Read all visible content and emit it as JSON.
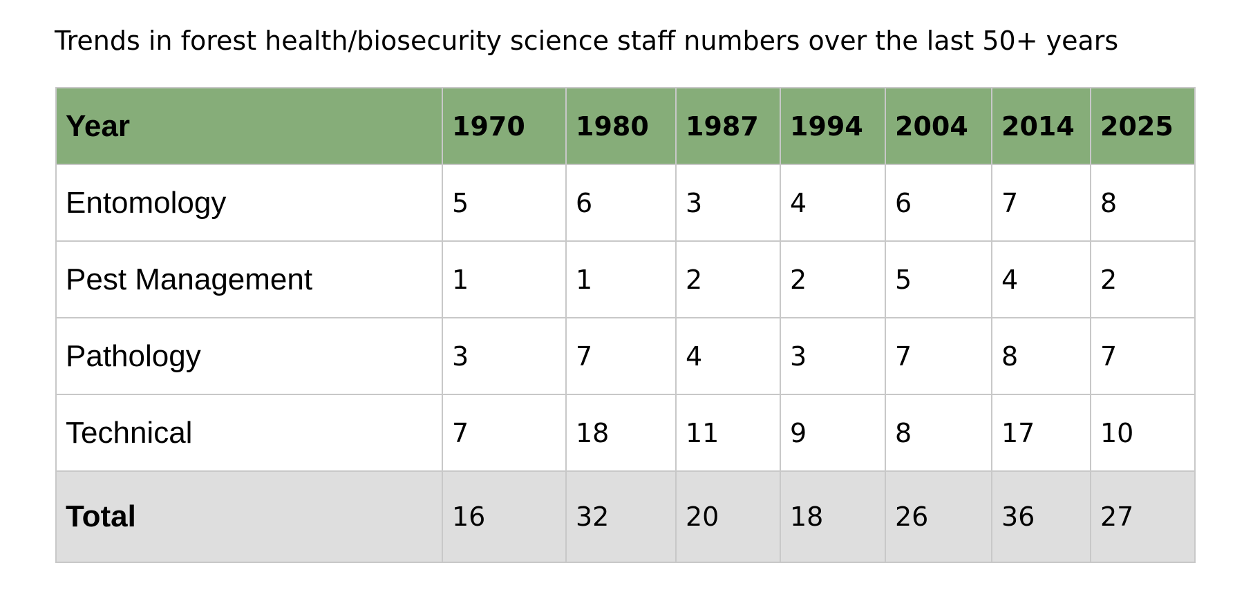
{
  "caption": "Trends in forest health/biosecurity science staff numbers over the last 50+ years",
  "table": {
    "header_label": "Year",
    "years": [
      "1970",
      "1980",
      "1987",
      "1994",
      "2004",
      "2014",
      "2025"
    ],
    "rows": [
      {
        "label": "Entomology",
        "values": [
          "5",
          "6",
          "3",
          "4",
          "6",
          "7",
          "8"
        ]
      },
      {
        "label": "Pest Management",
        "values": [
          "1",
          "1",
          "2",
          "2",
          "5",
          "4",
          "2"
        ]
      },
      {
        "label": "Pathology",
        "values": [
          "3",
          "7",
          "4",
          "3",
          "7",
          "8",
          "7"
        ]
      },
      {
        "label": "Technical",
        "values": [
          "7",
          "18",
          "11",
          "9",
          "8",
          "17",
          "10"
        ]
      }
    ],
    "total": {
      "label": "Total",
      "values": [
        "16",
        "32",
        "20",
        "18",
        "26",
        "36",
        "27"
      ]
    }
  },
  "colors": {
    "header_background": "#86ad79",
    "total_background": "#dedede",
    "border": "#c8c8c8"
  }
}
